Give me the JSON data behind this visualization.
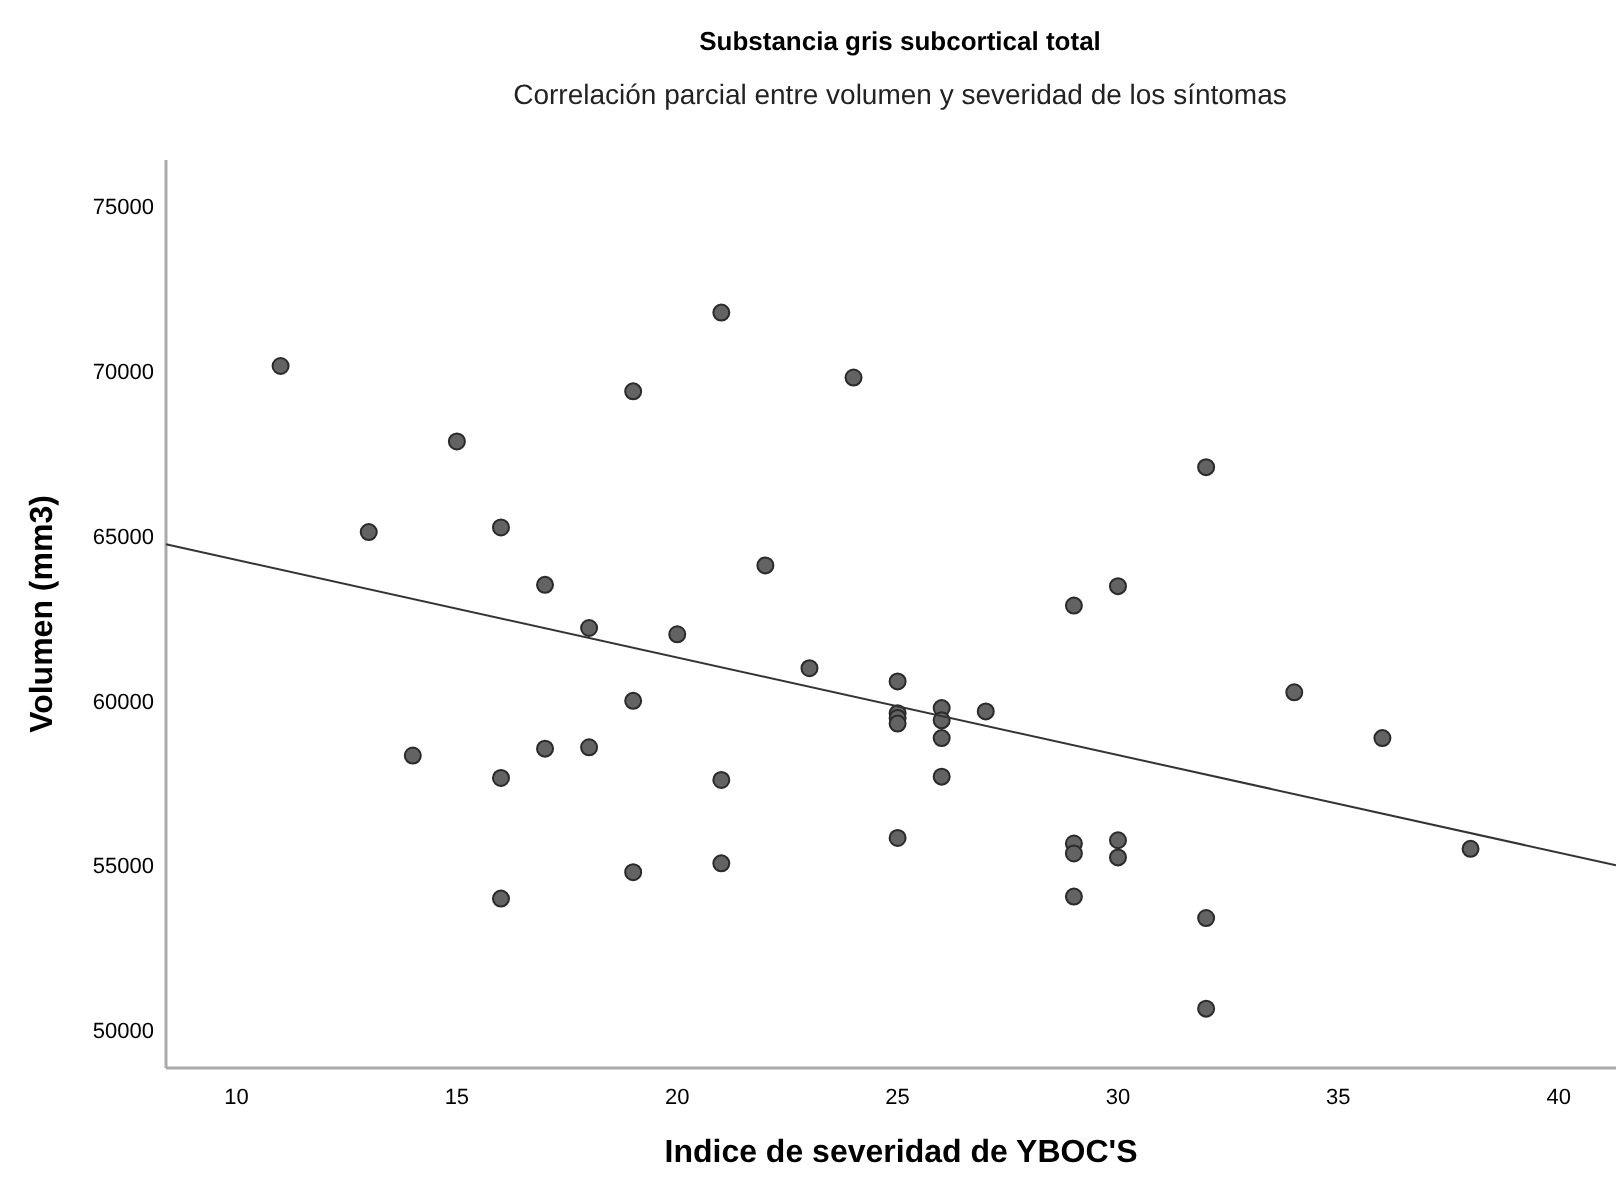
{
  "chart_data": {
    "type": "scatter",
    "title": "Substancia gris subcortical total",
    "subtitle": "Correlación parcial entre volumen y severidad de los síntomas",
    "xlabel": "Indice de severidad de YBOC'S",
    "ylabel": "Volumen (mm3)",
    "xlim": [
      8.4,
      41.3
    ],
    "ylim": [
      48850,
      76400
    ],
    "xticks": [
      10,
      15,
      20,
      25,
      30,
      35,
      40
    ],
    "yticks": [
      50000,
      55000,
      60000,
      65000,
      70000,
      75000
    ],
    "grid": false,
    "marker": "circle",
    "series": [
      {
        "color": "#636363",
        "x": [
          11,
          13,
          14,
          15,
          16,
          16,
          16,
          17,
          17,
          18,
          18,
          19,
          19,
          19,
          20,
          21,
          21,
          21,
          22,
          23,
          24,
          25,
          25,
          25,
          25,
          25,
          26,
          26,
          26,
          26,
          27,
          29,
          29,
          29,
          29,
          30,
          30,
          30,
          32,
          32,
          32,
          34,
          36,
          38
        ],
        "values": [
          70150,
          65110,
          58330,
          67860,
          65250,
          57650,
          53990,
          63510,
          58540,
          62200,
          58580,
          69380,
          59990,
          54790,
          62010,
          71770,
          57590,
          55060,
          64100,
          60980,
          69800,
          60580,
          59610,
          59470,
          59300,
          55830,
          59770,
          59400,
          58860,
          57690,
          59670,
          62880,
          55660,
          55360,
          54050,
          63470,
          55760,
          55240,
          67080,
          53400,
          50650,
          60250,
          58860,
          55500
        ]
      },
      {
        "type": "line",
        "color": "#333333",
        "x": [
          8.4,
          41.3
        ],
        "values": [
          64740,
          55000
        ],
        "marker": "none"
      }
    ]
  }
}
